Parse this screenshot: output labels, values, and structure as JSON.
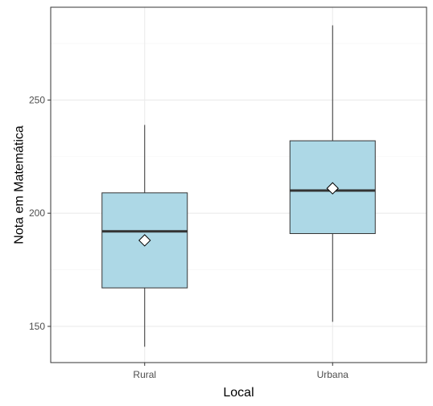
{
  "chart_data": {
    "type": "boxplot",
    "xlabel": "Local",
    "ylabel": "Nota em Matemática",
    "ylim": [
      134,
      291
    ],
    "y_ticks": [
      150,
      200,
      250
    ],
    "grid": true,
    "colors": {
      "box_fill": "#add8e6",
      "box_stroke": "#333333",
      "median": "#333333",
      "mean_marker_fill": "#ffffff",
      "grid_major": "#ebebeb",
      "grid_minor": "#f5f5f5",
      "panel_border": "#333333"
    },
    "categories": [
      "Rural",
      "Urbana"
    ],
    "boxes": [
      {
        "category": "Rural",
        "whisker_low": 141,
        "q1": 167,
        "median": 192,
        "q3": 209,
        "whisker_high": 239,
        "mean": 188
      },
      {
        "category": "Urbana",
        "whisker_low": 152,
        "q1": 191,
        "median": 210,
        "q3": 232,
        "whisker_high": 283,
        "mean": 211
      }
    ]
  }
}
